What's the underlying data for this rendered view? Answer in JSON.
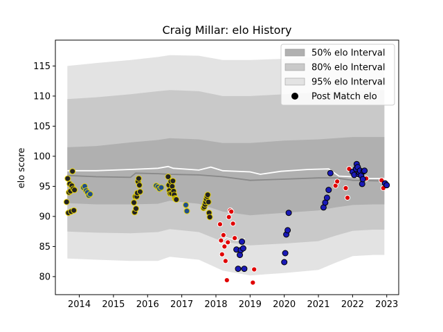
{
  "chart_data": {
    "type": "scatter",
    "title": "Craig Millar: elo History",
    "xlabel": "",
    "ylabel": "elo score",
    "xlim": [
      2013.3,
      2023.35
    ],
    "ylim": [
      77,
      119.3
    ],
    "xticks": [
      2014,
      2015,
      2016,
      2017,
      2018,
      2019,
      2020,
      2021,
      2022,
      2023
    ],
    "yticks": [
      80,
      85,
      90,
      95,
      100,
      105,
      110,
      115
    ],
    "grid": false,
    "legend_position": "top-right",
    "legend": [
      {
        "label": "50% elo Interval",
        "kind": "patch",
        "color": "#b0b0b0"
      },
      {
        "label": "80% elo Interval",
        "kind": "patch",
        "color": "#c9c9c9"
      },
      {
        "label": "95% elo Interval",
        "kind": "patch",
        "color": "#e3e3e3"
      },
      {
        "label": "Post Match elo",
        "kind": "marker",
        "color": "#000000"
      }
    ],
    "bands": {
      "x": [
        2013.65,
        2014.5,
        2015.5,
        2016.3,
        2016.65,
        2017.5,
        2018.2,
        2019.0,
        2020.0,
        2021.0,
        2021.5,
        2022.0,
        2022.6,
        2022.93
      ],
      "band95": {
        "lower": [
          83.0,
          82.8,
          82.6,
          82.6,
          83.3,
          82.8,
          81.0,
          80.2,
          80.6,
          81.1,
          82.3,
          83.4,
          83.6,
          83.6
        ],
        "upper": [
          115.0,
          115.5,
          116.0,
          116.5,
          116.8,
          116.7,
          116.0,
          116.0,
          116.2,
          116.5,
          116.6,
          116.7,
          116.8,
          116.8
        ]
      },
      "band80": {
        "lower": [
          87.5,
          87.3,
          87.2,
          87.4,
          87.9,
          87.4,
          85.8,
          85.2,
          85.5,
          85.9,
          86.8,
          87.6,
          87.8,
          87.8
        ],
        "upper": [
          109.5,
          109.8,
          110.3,
          110.8,
          111.0,
          110.8,
          110.0,
          110.0,
          110.3,
          110.6,
          110.8,
          110.9,
          111.0,
          111.0
        ]
      },
      "band50": {
        "lower": [
          92.2,
          92.0,
          92.0,
          92.1,
          92.6,
          92.1,
          90.8,
          90.2,
          90.6,
          91.0,
          91.5,
          91.9,
          92.0,
          92.0
        ],
        "upper": [
          101.5,
          101.7,
          102.3,
          102.7,
          103.0,
          102.8,
          102.2,
          102.2,
          102.6,
          102.8,
          103.0,
          103.2,
          103.2,
          103.2
        ]
      }
    },
    "lines": [
      {
        "name": "grey line",
        "color": "#888888",
        "x": [
          2013.65,
          2014.5,
          2015.5,
          2015.65,
          2016.3,
          2016.65,
          2017.5,
          2018.2,
          2019.0,
          2020.0,
          2021.0,
          2021.5,
          2022.0,
          2022.93
        ],
        "y": [
          96.8,
          96.6,
          96.5,
          97.2,
          97.1,
          97.0,
          96.9,
          96.6,
          96.0,
          96.2,
          96.4,
          96.4,
          96.0,
          95.9
        ]
      },
      {
        "name": "white line",
        "color": "#ffffff",
        "x": [
          2013.65,
          2014.5,
          2015.5,
          2016.3,
          2016.6,
          2016.75,
          2017.5,
          2017.85,
          2018.2,
          2019.0,
          2019.3,
          2019.9,
          2020.7,
          2021.3,
          2021.6,
          2022.0,
          2022.5,
          2022.93
        ],
        "y": [
          97.6,
          97.6,
          97.8,
          98.0,
          98.3,
          98.0,
          97.7,
          98.2,
          97.6,
          97.4,
          97.0,
          97.5,
          97.8,
          97.9,
          96.7,
          96.6,
          96.3,
          96.3
        ]
      },
      {
        "name": "highlight line",
        "color": "#ffffff",
        "x": [
          2018.1,
          2018.3,
          2018.6,
          2018.85
        ],
        "y": [
          85.5,
          86.5,
          86.0,
          86.3
        ]
      }
    ],
    "series": [
      {
        "name": "",
        "fill": "#222222",
        "edge": "#e6d200",
        "r": 4,
        "x": [
          2013.63,
          2013.66,
          2013.68,
          2013.7,
          2013.72,
          2013.74,
          2013.76,
          2013.78,
          2013.8,
          2013.82,
          2013.84,
          2013.86,
          2015.6,
          2015.62,
          2015.64,
          2015.66,
          2015.68,
          2015.7,
          2015.72,
          2015.74,
          2015.76,
          2015.78,
          2016.6,
          2016.62,
          2016.64,
          2016.66,
          2016.68,
          2016.7,
          2016.72,
          2016.74,
          2016.76,
          2016.78,
          2016.8,
          2016.82,
          2016.84,
          2017.64,
          2017.66,
          2017.68,
          2017.7,
          2017.72,
          2017.74,
          2017.76,
          2017.78,
          2017.8,
          2017.82
        ],
        "y": [
          92.4,
          96.3,
          90.6,
          94.0,
          95.4,
          94.2,
          90.8,
          95.1,
          97.5,
          94.6,
          91.0,
          94.4,
          92.3,
          90.7,
          93.3,
          91.3,
          93.3,
          93.9,
          95.8,
          96.3,
          95.2,
          94.1,
          96.6,
          95.2,
          94.3,
          93.8,
          95.8,
          93.8,
          95.0,
          95.9,
          94.2,
          93.6,
          93.0,
          92.9,
          92.8,
          91.4,
          91.6,
          92.0,
          92.4,
          92.9,
          93.3,
          93.6,
          92.4,
          90.6,
          89.9
        ]
      },
      {
        "name": "",
        "fill": "#1f4e8c",
        "edge": "#e6d200",
        "r": 4,
        "x": [
          2014.12,
          2014.16,
          2014.2,
          2014.24,
          2014.28,
          2014.32,
          2016.25,
          2016.3,
          2016.35,
          2016.4,
          2017.12,
          2017.15
        ],
        "y": [
          94.8,
          95.0,
          94.3,
          94.0,
          93.5,
          93.7,
          95.1,
          94.9,
          94.6,
          94.8,
          91.9,
          90.9
        ]
      },
      {
        "name": "",
        "fill": "#e00000",
        "edge": "#ffffff",
        "r": 3.6,
        "x": [
          2018.12,
          2018.15,
          2018.18,
          2018.22,
          2018.25,
          2018.28,
          2018.32,
          2018.35,
          2018.38,
          2018.42,
          2018.45,
          2018.5,
          2018.55,
          2019.08,
          2019.12,
          2021.5,
          2021.55,
          2021.8,
          2021.85,
          2021.9,
          2022.4,
          2022.85,
          2022.9
        ],
        "y": [
          88.7,
          86.0,
          83.7,
          86.9,
          85.0,
          82.6,
          79.4,
          85.7,
          89.9,
          91.0,
          90.8,
          88.8,
          86.4,
          79.0,
          81.2,
          95.1,
          95.8,
          94.7,
          93.1,
          97.9,
          96.3,
          96.0,
          94.7
        ]
      },
      {
        "name": "",
        "fill": "#1a1ab8",
        "edge": "#000000",
        "r": 4,
        "x": [
          2018.6,
          2018.65,
          2018.7,
          2018.73,
          2018.76,
          2018.8,
          2018.83,
          2020.0,
          2020.03,
          2020.06,
          2020.1,
          2020.13,
          2021.15,
          2021.2,
          2021.25,
          2021.3,
          2021.35,
          2022.0,
          2022.05,
          2022.1,
          2022.12,
          2022.15,
          2022.18,
          2022.2,
          2022.22,
          2022.25,
          2022.28,
          2022.3,
          2022.32,
          2022.35,
          2022.95,
          2023.0
        ],
        "y": [
          84.5,
          81.3,
          83.6,
          84.4,
          85.8,
          84.7,
          81.3,
          82.4,
          83.9,
          87.0,
          87.7,
          90.6,
          91.5,
          92.3,
          93.1,
          94.4,
          97.2,
          97.4,
          96.9,
          97.9,
          98.7,
          98.2,
          97.0,
          97.3,
          97.6,
          96.8,
          95.4,
          96.2,
          97.5,
          97.6,
          95.5,
          95.2
        ]
      }
    ]
  }
}
